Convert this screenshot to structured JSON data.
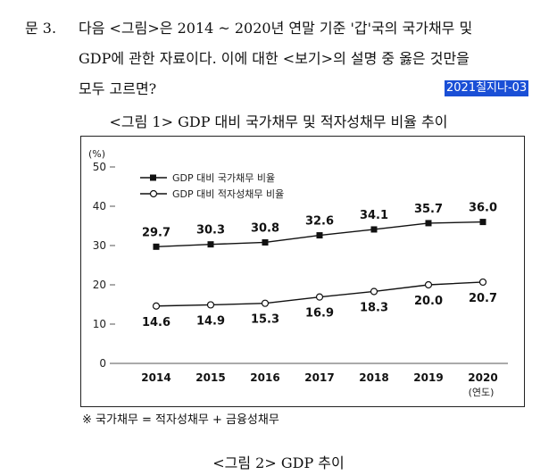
{
  "question": {
    "number": "문  3.",
    "line1": "다음 <그림>은 2014 ~ 2020년 연말 기준 '갑'국의 국가채무 및",
    "line2": "GDP에 관한 자료이다. 이에 대한 <보기>의 설명 중 옳은 것만을",
    "line3": "모두 고르면?",
    "tag": "2021칠지나-03"
  },
  "figure1_title": "<그림 1> GDP 대비 국가채무 및 적자성채무 비율 추이",
  "figure2_title": "<그림 2> GDP 추이",
  "footnote": "※ 국가채무 = 적자성채무 + 금융성채무",
  "chart_data": {
    "type": "line",
    "title": "",
    "ylabel": "(%)",
    "xlabel": "(연도)",
    "ylim": [
      0,
      50
    ],
    "yticks": [
      0,
      10,
      20,
      30,
      40,
      50
    ],
    "categories": [
      "2014",
      "2015",
      "2016",
      "2017",
      "2018",
      "2019",
      "2020"
    ],
    "series": [
      {
        "name": "GDP 대비 국가채무 비율",
        "marker": "filled-square",
        "color": "#111111",
        "values": [
          29.7,
          30.3,
          30.8,
          32.6,
          34.1,
          35.7,
          36.0
        ],
        "labels": [
          "29.7",
          "30.3",
          "30.8",
          "32.6",
          "34.1",
          "35.7",
          "36.0"
        ]
      },
      {
        "name": "GDP 대비 적자성채무 비율",
        "marker": "hollow-circle",
        "color": "#111111",
        "values": [
          14.6,
          14.9,
          15.3,
          16.9,
          18.3,
          20.0,
          20.7
        ],
        "labels": [
          "14.6",
          "14.9",
          "15.3",
          "16.9",
          "18.3",
          "20.0",
          "20.7"
        ]
      }
    ],
    "legend_position": "top-left",
    "grid": false
  }
}
